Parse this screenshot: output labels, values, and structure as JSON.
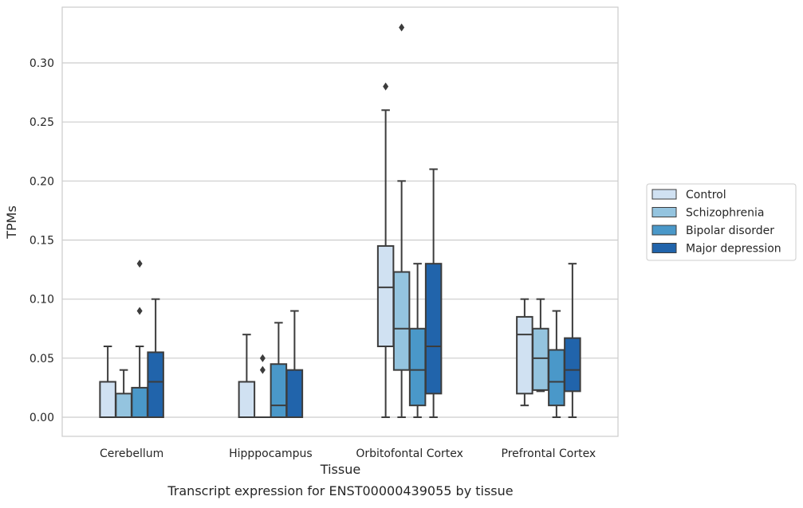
{
  "chart_data": {
    "type": "boxplot",
    "caption": "Transcript expression for ENST00000439055 by tissue",
    "xlabel": "Tissue",
    "ylabel": "TPMs",
    "ylim": [
      -0.016,
      0.346
    ],
    "yticks": [
      0.0,
      0.05,
      0.1,
      0.15,
      0.2,
      0.25,
      0.3
    ],
    "ytick_labels": [
      "0.00",
      "0.05",
      "0.10",
      "0.15",
      "0.20",
      "0.25",
      "0.30"
    ],
    "grid": "horizontal",
    "legend_position": "right-outside",
    "categories": [
      "Cerebellum",
      "Hipppocampus",
      "Orbitofontal Cortex",
      "Prefrontal Cortex"
    ],
    "series": [
      {
        "name": "Control",
        "color": "#d0e1f2",
        "boxes": [
          {
            "whislo": 0.0,
            "q1": 0.0,
            "med": 0.0,
            "q3": 0.03,
            "whishi": 0.06,
            "fliers": []
          },
          {
            "whislo": 0.0,
            "q1": 0.0,
            "med": 0.0,
            "q3": 0.03,
            "whishi": 0.07,
            "fliers": []
          },
          {
            "whislo": 0.0,
            "q1": 0.06,
            "med": 0.11,
            "q3": 0.145,
            "whishi": 0.26,
            "fliers": [
              0.28
            ]
          },
          {
            "whislo": 0.01,
            "q1": 0.02,
            "med": 0.07,
            "q3": 0.085,
            "whishi": 0.1,
            "fliers": []
          }
        ]
      },
      {
        "name": "Schizophrenia",
        "color": "#94c4df",
        "boxes": [
          {
            "whislo": 0.0,
            "q1": 0.0,
            "med": 0.0,
            "q3": 0.02,
            "whishi": 0.04,
            "fliers": []
          },
          {
            "whislo": 0.0,
            "q1": 0.0,
            "med": 0.0,
            "q3": 0.0,
            "whishi": 0.0,
            "fliers": [
              0.04,
              0.05
            ]
          },
          {
            "whislo": 0.0,
            "q1": 0.04,
            "med": 0.075,
            "q3": 0.123,
            "whishi": 0.2,
            "fliers": [
              0.33
            ]
          },
          {
            "whislo": 0.022,
            "q1": 0.023,
            "med": 0.05,
            "q3": 0.075,
            "whishi": 0.1,
            "fliers": []
          }
        ]
      },
      {
        "name": "Bipolar disorder",
        "color": "#4a98c9",
        "boxes": [
          {
            "whislo": 0.0,
            "q1": 0.0,
            "med": 0.0,
            "q3": 0.025,
            "whishi": 0.06,
            "fliers": [
              0.09,
              0.13
            ]
          },
          {
            "whislo": 0.0,
            "q1": 0.0,
            "med": 0.01,
            "q3": 0.045,
            "whishi": 0.08,
            "fliers": []
          },
          {
            "whislo": 0.0,
            "q1": 0.01,
            "med": 0.04,
            "q3": 0.075,
            "whishi": 0.13,
            "fliers": []
          },
          {
            "whislo": 0.0,
            "q1": 0.01,
            "med": 0.03,
            "q3": 0.057,
            "whishi": 0.09,
            "fliers": []
          }
        ]
      },
      {
        "name": "Major depression",
        "color": "#2164ab",
        "boxes": [
          {
            "whislo": 0.0,
            "q1": 0.0,
            "med": 0.03,
            "q3": 0.055,
            "whishi": 0.1,
            "fliers": []
          },
          {
            "whislo": 0.0,
            "q1": 0.0,
            "med": 0.0,
            "q3": 0.04,
            "whishi": 0.09,
            "fliers": []
          },
          {
            "whislo": 0.0,
            "q1": 0.02,
            "med": 0.06,
            "q3": 0.13,
            "whishi": 0.21,
            "fliers": []
          },
          {
            "whislo": 0.0,
            "q1": 0.022,
            "med": 0.04,
            "q3": 0.067,
            "whishi": 0.13,
            "fliers": []
          }
        ]
      }
    ]
  }
}
